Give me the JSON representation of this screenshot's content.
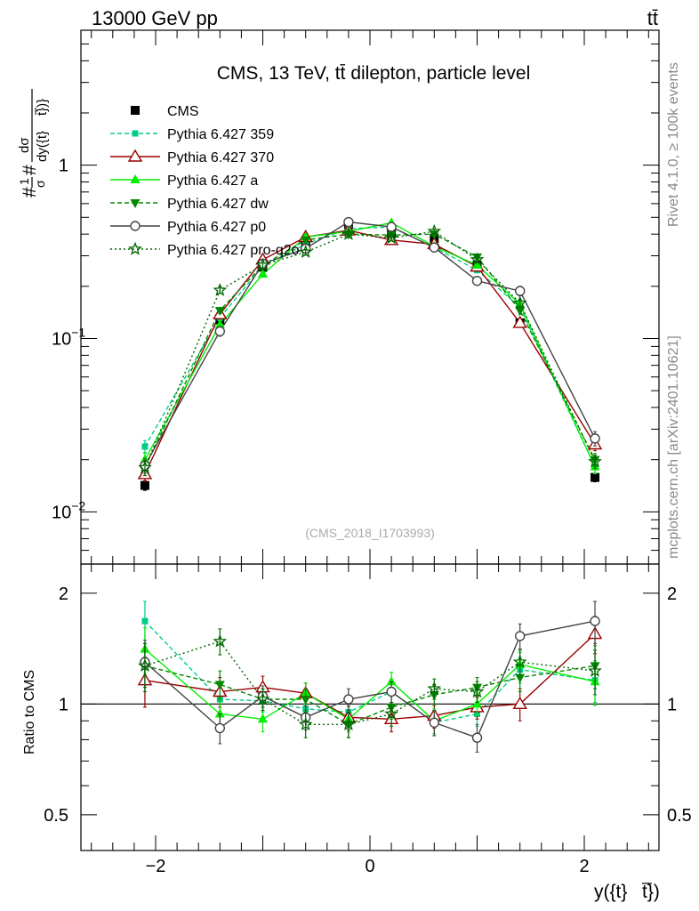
{
  "header": {
    "left_label": "13000 GeV pp",
    "right_label": "tt̄"
  },
  "side_text": {
    "top": "Rivet 4.1.0, ≥ 100k events",
    "bottom": "mcplots.cern.ch [arXiv:2401.10621]"
  },
  "chart_data": [
    {
      "id": "main",
      "type": "line",
      "title": "CMS, 13 TeV, tt̄ dilepton, particle level",
      "ylabel": "#1/σ# dσ/dy({t}\\overline{t})",
      "ylabel_parts": {
        "hash1": "#",
        "one": "1",
        "sigma": "σ",
        "hash2": "#",
        "dsigma": "dσ",
        "dy": "dy({t}",
        "tbar": "t})}"
      },
      "yscale": "log",
      "ylim": [
        0.005,
        6
      ],
      "xlim": [
        -2.7,
        2.7
      ],
      "y_tick_labels": [
        {
          "value": 1,
          "base": "1",
          "exp": ""
        },
        {
          "value": 0.1,
          "base": "10",
          "exp": "−1"
        },
        {
          "value": 0.01,
          "base": "10",
          "exp": "−2"
        }
      ],
      "watermark": "(CMS_2018_I1703993)",
      "x": [
        -2.1,
        -1.4,
        -1.0,
        -0.6,
        -0.2,
        0.2,
        0.6,
        1.0,
        1.4,
        2.1
      ],
      "series": [
        {
          "name": "CMS",
          "color": "#000000",
          "marker": "square",
          "dash": "none",
          "line": false,
          "values": [
            0.0142,
            0.128,
            0.258,
            0.36,
            0.455,
            0.405,
            0.378,
            0.265,
            0.123,
            0.0158
          ],
          "errors": [
            0.0009,
            0.005,
            0.008,
            0.01,
            0.012,
            0.011,
            0.01,
            0.008,
            0.005,
            0.0009
          ]
        },
        {
          "name": "Pythia 6.427 359",
          "color": "#00cc88",
          "marker": "square-small",
          "dash": "5,3",
          "line": true,
          "values": [
            0.0238,
            0.132,
            0.262,
            0.35,
            0.43,
            0.44,
            0.335,
            0.248,
            0.152,
            0.0182
          ],
          "errors": [
            0.002,
            0.006,
            0.009,
            0.011,
            0.012,
            0.012,
            0.011,
            0.009,
            0.007,
            0.0015
          ]
        },
        {
          "name": "Pythia 6.427 370",
          "color": "#990000",
          "marker": "triangle-open",
          "dash": "none",
          "line": true,
          "values": [
            0.0165,
            0.138,
            0.285,
            0.385,
            0.42,
            0.37,
            0.35,
            0.26,
            0.123,
            0.0245
          ],
          "errors": [
            0.0015,
            0.006,
            0.01,
            0.012,
            0.012,
            0.011,
            0.011,
            0.009,
            0.007,
            0.002
          ]
        },
        {
          "name": "Pythia 6.427 a",
          "color": "#00ee00",
          "marker": "triangle",
          "dash": "none",
          "line": true,
          "values": [
            0.02,
            0.12,
            0.235,
            0.385,
            0.415,
            0.465,
            0.34,
            0.265,
            0.158,
            0.0182
          ],
          "errors": [
            0.002,
            0.006,
            0.009,
            0.012,
            0.012,
            0.013,
            0.011,
            0.009,
            0.007,
            0.0016
          ]
        },
        {
          "name": "Pythia 6.427 dw",
          "color": "#008800",
          "marker": "triangle-down",
          "dash": "5,3",
          "line": true,
          "values": [
            0.018,
            0.145,
            0.265,
            0.37,
            0.4,
            0.395,
            0.4,
            0.295,
            0.145,
            0.02
          ],
          "errors": [
            0.0018,
            0.006,
            0.009,
            0.011,
            0.012,
            0.012,
            0.012,
            0.01,
            0.007,
            0.0017
          ]
        },
        {
          "name": "Pythia 6.427 p0",
          "color": "#444444",
          "marker": "circle-open",
          "dash": "none",
          "line": true,
          "values": [
            0.0185,
            0.11,
            0.27,
            0.33,
            0.47,
            0.44,
            0.335,
            0.215,
            0.188,
            0.0265
          ],
          "errors": [
            0.0018,
            0.007,
            0.01,
            0.011,
            0.013,
            0.012,
            0.011,
            0.01,
            0.012,
            0.0025
          ]
        },
        {
          "name": "Pythia 6.427 pro-q2o",
          "color": "#006600",
          "marker": "star",
          "dash": "2,3",
          "line": true,
          "values": [
            0.018,
            0.19,
            0.265,
            0.315,
            0.4,
            0.38,
            0.415,
            0.285,
            0.16,
            0.0195
          ],
          "errors": [
            0.0018,
            0.008,
            0.009,
            0.011,
            0.012,
            0.011,
            0.012,
            0.009,
            0.008,
            0.0017
          ]
        }
      ]
    },
    {
      "id": "ratio",
      "type": "line",
      "ylabel": "Ratio to CMS",
      "yscale": "log",
      "ylim": [
        0.4,
        2.4
      ],
      "xlim": [
        -2.7,
        2.7
      ],
      "xlabel": "y({t}\\overline{t})",
      "xlabel_parts": {
        "pre": "y({t}",
        "tbar": "t})"
      },
      "x_tick_labels": [
        "−2",
        "0",
        "2"
      ],
      "x_tick_values": [
        -2,
        0,
        2
      ],
      "y_tick_labels": [
        {
          "value": 2,
          "label": "2"
        },
        {
          "value": 1,
          "label": "1"
        },
        {
          "value": 0.5,
          "label": "0.5"
        }
      ],
      "reference_line": 1,
      "series": [
        {
          "name": "CMS",
          "values": [
            1,
            1,
            1,
            1,
            1,
            1,
            1,
            1,
            1,
            1
          ],
          "errors": [
            0.07,
            0.05,
            0.04,
            0.04,
            0.04,
            0.04,
            0.04,
            0.04,
            0.05,
            0.07
          ]
        },
        {
          "name": "Pythia 6.427 359",
          "values": [
            1.68,
            1.03,
            1.02,
            0.97,
            0.95,
            1.08,
            0.89,
            0.94,
            1.24,
            1.16
          ],
          "errors": [
            0.22,
            0.1,
            0.07,
            0.07,
            0.07,
            0.07,
            0.07,
            0.07,
            0.1,
            0.15
          ]
        },
        {
          "name": "Pythia 6.427 370",
          "values": [
            1.16,
            1.08,
            1.11,
            1.07,
            0.92,
            0.91,
            0.93,
            0.98,
            1.0,
            1.55
          ],
          "errors": [
            0.18,
            0.1,
            0.08,
            0.07,
            0.07,
            0.07,
            0.07,
            0.07,
            0.1,
            0.18
          ]
        },
        {
          "name": "Pythia 6.427 a",
          "values": [
            1.41,
            0.94,
            0.91,
            1.07,
            0.91,
            1.15,
            0.9,
            1.0,
            1.28,
            1.15
          ],
          "errors": [
            0.2,
            0.1,
            0.07,
            0.07,
            0.07,
            0.07,
            0.07,
            0.07,
            0.1,
            0.16
          ]
        },
        {
          "name": "Pythia 6.427 dw",
          "values": [
            1.27,
            1.13,
            1.03,
            1.03,
            0.88,
            0.98,
            1.06,
            1.11,
            1.18,
            1.27
          ],
          "errors": [
            0.19,
            0.1,
            0.07,
            0.07,
            0.07,
            0.07,
            0.07,
            0.07,
            0.1,
            0.17
          ]
        },
        {
          "name": "Pythia 6.427 p0",
          "values": [
            1.3,
            0.86,
            1.05,
            0.92,
            1.03,
            1.08,
            0.89,
            0.81,
            1.53,
            1.68
          ],
          "errors": [
            0.19,
            0.08,
            0.07,
            0.07,
            0.07,
            0.07,
            0.07,
            0.07,
            0.12,
            0.22
          ]
        },
        {
          "name": "Pythia 6.427 pro-q2o",
          "values": [
            1.27,
            1.48,
            1.03,
            0.88,
            0.88,
            0.94,
            1.1,
            1.08,
            1.3,
            1.23
          ],
          "errors": [
            0.19,
            0.12,
            0.07,
            0.07,
            0.07,
            0.07,
            0.07,
            0.07,
            0.1,
            0.17
          ]
        }
      ]
    }
  ]
}
